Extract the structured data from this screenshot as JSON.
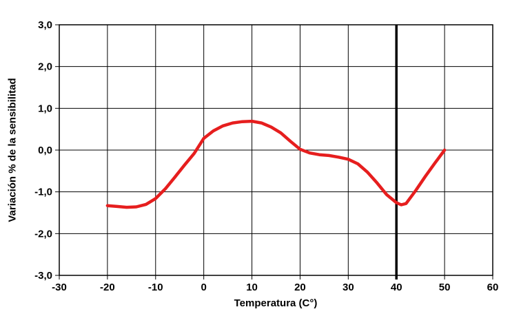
{
  "chart_data": {
    "type": "line",
    "title": "",
    "xlabel": "Temperatura (C°)",
    "ylabel": "Variación % de la sensibilitad",
    "xlim": [
      -30,
      60
    ],
    "ylim": [
      -3,
      3
    ],
    "x_ticks": [
      -30,
      -20,
      -10,
      0,
      10,
      20,
      30,
      40,
      50,
      60
    ],
    "x_tick_labels": [
      "-30",
      "-20",
      "-10",
      "0",
      "10",
      "20",
      "30",
      "40",
      "50",
      "60"
    ],
    "y_ticks": [
      3,
      2,
      1,
      0,
      -1,
      -2,
      -3
    ],
    "y_tick_labels": [
      "3,0",
      "2,0",
      "1,0",
      "0,0",
      "-1,0",
      "-2,0",
      "-3,0"
    ],
    "grid": true,
    "legend": null,
    "reference_line_x": 40,
    "series": [
      {
        "color": "#e61e1e",
        "points": [
          [
            -20,
            -1.33
          ],
          [
            -18,
            -1.35
          ],
          [
            -16,
            -1.37
          ],
          [
            -14,
            -1.36
          ],
          [
            -12,
            -1.3
          ],
          [
            -10,
            -1.16
          ],
          [
            -8,
            -0.93
          ],
          [
            -6,
            -0.65
          ],
          [
            -4,
            -0.36
          ],
          [
            -2,
            -0.08
          ],
          [
            0,
            0.28
          ],
          [
            2,
            0.46
          ],
          [
            4,
            0.58
          ],
          [
            6,
            0.65
          ],
          [
            8,
            0.68
          ],
          [
            10,
            0.69
          ],
          [
            12,
            0.65
          ],
          [
            14,
            0.55
          ],
          [
            16,
            0.41
          ],
          [
            18,
            0.21
          ],
          [
            20,
            0.02
          ],
          [
            22,
            -0.07
          ],
          [
            24,
            -0.11
          ],
          [
            26,
            -0.13
          ],
          [
            28,
            -0.17
          ],
          [
            30,
            -0.22
          ],
          [
            32,
            -0.33
          ],
          [
            34,
            -0.53
          ],
          [
            36,
            -0.79
          ],
          [
            38,
            -1.07
          ],
          [
            40,
            -1.26
          ],
          [
            41,
            -1.31
          ],
          [
            42,
            -1.28
          ],
          [
            44,
            -0.97
          ],
          [
            46,
            -0.63
          ],
          [
            48,
            -0.31
          ],
          [
            50,
            0.0
          ]
        ]
      }
    ]
  },
  "colors": {
    "background": "#ffffff",
    "grid": "#000000",
    "border": "#000000",
    "curve": "#e61e1e",
    "reference_line": "#000000",
    "text": "#000000"
  }
}
